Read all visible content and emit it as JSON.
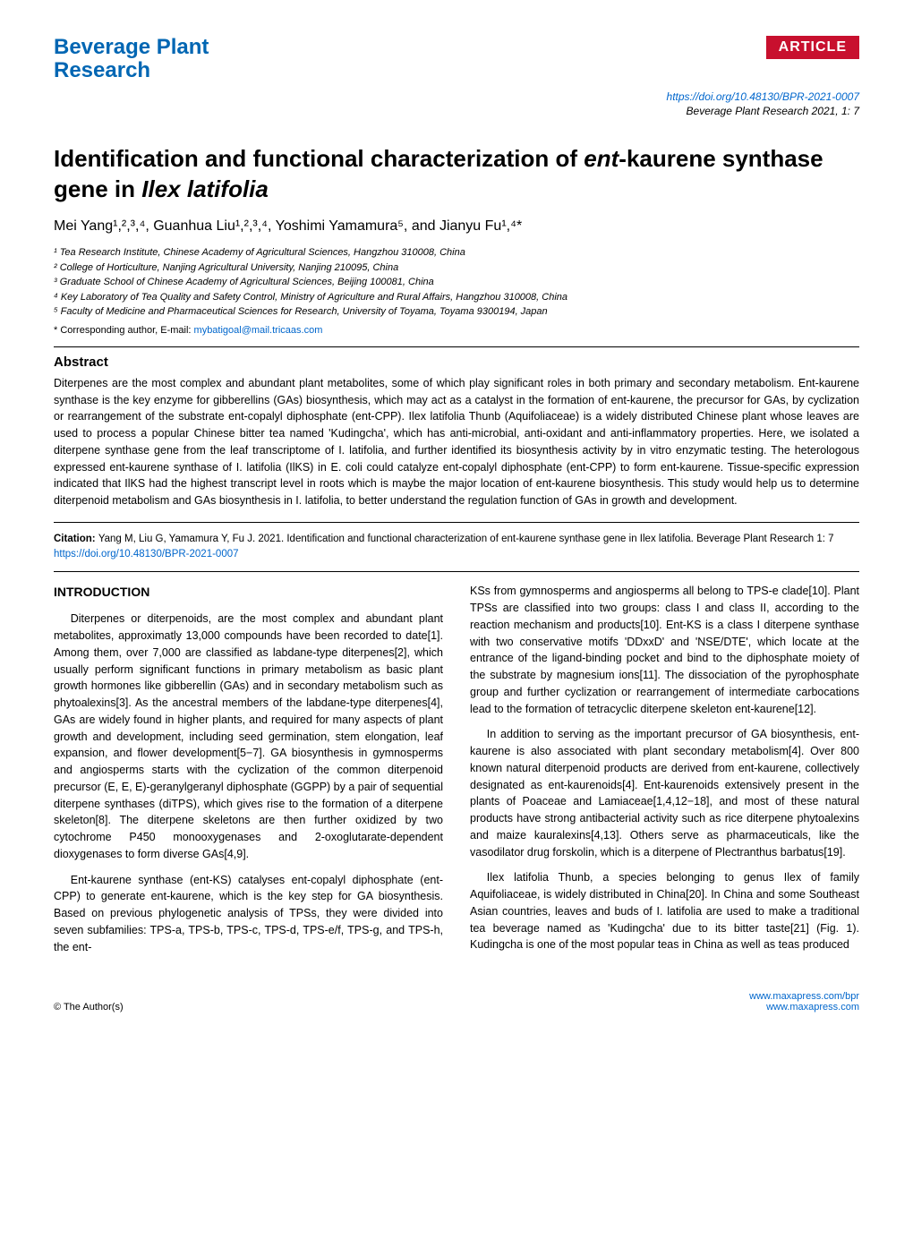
{
  "header": {
    "journal_line1": "Beverage Plant",
    "journal_line2": "Research",
    "badge": "ARTICLE",
    "doi_url": "https://doi.org/10.48130/BPR-2021-0007",
    "citation_meta": "Beverage Plant Research 2021, 1: 7"
  },
  "title_parts": {
    "p1": "Identification and functional characterization of ",
    "p2_italic": "ent",
    "p3": "-kaurene synthase gene in ",
    "p4_italic": "Ilex latifolia"
  },
  "authors_line": "Mei Yang¹,²,³,⁴, Guanhua Liu¹,²,³,⁴, Yoshimi Yamamura⁵, and Jianyu Fu¹,⁴*",
  "affiliations": {
    "a1": "¹ Tea Research Institute, Chinese Academy of Agricultural Sciences, Hangzhou 310008, China",
    "a2": "² College of Horticulture, Nanjing Agricultural University, Nanjing 210095, China",
    "a3": "³ Graduate School of Chinese Academy of Agricultural Sciences, Beijing 100081, China",
    "a4": "⁴ Key Laboratory of Tea Quality and Safety Control, Ministry of Agriculture and Rural Affairs, Hangzhou 310008, China",
    "a5": "⁵ Faculty of Medicine and Pharmaceutical Sciences for Research, University of Toyama, Toyama 9300194, Japan"
  },
  "corresponding": {
    "label": "* Corresponding author, E-mail: ",
    "email": "mybatigoal@mail.tricaas.com"
  },
  "abstract": {
    "heading": "Abstract",
    "text": "Diterpenes are the most complex and abundant plant metabolites, some of which play significant roles in both primary and secondary metabolism. Ent-kaurene synthase is the key enzyme for gibberellins (GAs) biosynthesis, which may act as a catalyst in the formation of ent-kaurene, the precursor for GAs, by cyclization or rearrangement of the substrate ent-copalyl diphosphate (ent-CPP). Ilex latifolia Thunb (Aquifoliaceae) is a widely distributed Chinese plant whose leaves are used to process a popular Chinese bitter tea named 'Kudingcha', which has anti-microbial, anti-oxidant and anti-inflammatory properties. Here, we isolated a diterpene synthase gene from the leaf transcriptome of I. latifolia, and further identified its biosynthesis activity by in vitro enzymatic testing. The heterologous expressed ent-kaurene synthase of I. latifolia (IlKS) in E. coli could catalyze ent-copalyl diphosphate (ent-CPP) to form ent-kaurene. Tissue-specific expression indicated that IlKS had the highest transcript level in roots which is maybe the major location of ent-kaurene biosynthesis. This study would help us to determine diterpenoid metabolism and GAs biosynthesis in I. latifolia, to better understand the regulation function of GAs in growth and development."
  },
  "citation": {
    "label": "Citation:  ",
    "text": "Yang M, Liu G, Yamamura Y, Fu J. 2021. Identification and functional characterization of ent-kaurene synthase gene in Ilex latifolia. Beverage Plant Research 1: 7 ",
    "link": "https://doi.org/10.48130/BPR-2021-0007"
  },
  "intro_heading": "INTRODUCTION",
  "col_left": {
    "p1": "Diterpenes or diterpenoids, are the most complex and abundant plant metabolites, approximatly 13,000 compounds have been recorded to date[1]. Among them, over 7,000 are classified as labdane-type diterpenes[2], which usually perform significant functions in primary metabolism as basic plant growth hormones like gibberellin (GAs) and in secondary metabolism such as phytoalexins[3]. As the ancestral members of the labdane-type diterpenes[4], GAs are widely found in higher plants, and required for many aspects of plant growth and development, including seed germination, stem elongation, leaf expansion, and flower development[5−7]. GA biosynthesis in gymnosperms and angiosperms starts with the cyclization of the common diterpenoid precursor (E, E, E)-geranylgeranyl diphosphate (GGPP) by a pair of sequential diterpene synthases (diTPS), which gives rise to the formation of a diterpene skeleton[8]. The diterpene skeletons are then further oxidized by two cytochrome P450 monooxygenases and 2-oxoglutarate-dependent dioxygenases to form diverse GAs[4,9].",
    "p2": "Ent-kaurene synthase (ent-KS) catalyses ent-copalyl diphosphate (ent-CPP) to generate ent-kaurene, which is the key step for GA biosynthesis. Based on previous phylogenetic analysis of TPSs, they were divided into seven subfamilies: TPS-a, TPS-b, TPS-c, TPS-d, TPS-e/f, TPS-g, and TPS-h, the ent-"
  },
  "col_right": {
    "p1": "KSs from gymnosperms and angiosperms all belong to TPS-e clade[10]. Plant TPSs are classified into two groups: class I and class II, according to the reaction mechanism and products[10]. Ent-KS is a class I diterpene synthase with two conservative motifs 'DDxxD' and 'NSE/DTE', which locate at the entrance of the ligand-binding pocket and bind to the diphosphate moiety of the substrate by magnesium ions[11]. The dissociation of the pyrophosphate group and further cyclization or rearrangement of intermediate carbocations lead to the formation of tetracyclic diterpene skeleton ent-kaurene[12].",
    "p2": "In addition to serving as the important precursor of GA biosynthesis, ent-kaurene is also associated with plant secondary metabolism[4]. Over 800 known natural diterpenoid products are derived from ent-kaurene, collectively designated as ent-kaurenoids[4]. Ent-kaurenoids extensively present in the plants of Poaceae and Lamiaceae[1,4,12−18], and most of these natural products have strong antibacterial activity such as rice diterpene phytoalexins and maize kauralexins[4,13]. Others serve as pharmaceuticals, like the vasodilator drug forskolin, which is a diterpene of Plectranthus barbatus[19].",
    "p3": "Ilex latifolia Thunb, a species belonging to genus Ilex of family Aquifoliaceae, is widely distributed in China[20]. In China and some Southeast Asian countries, leaves and buds of I. latifolia are used to make a traditional tea beverage named as 'Kudingcha' due to its bitter taste[21] (Fig. 1). Kudingcha is one of the most popular teas in China as well as teas produced"
  },
  "footer": {
    "copyright": "© The Author(s)",
    "link1": "www.maxapress.com/bpr",
    "link2": "www.maxapress.com"
  },
  "colors": {
    "journal_blue": "#0066b3",
    "badge_red": "#c8102e",
    "link_blue": "#0066cc",
    "text_black": "#000000",
    "background": "#ffffff"
  }
}
